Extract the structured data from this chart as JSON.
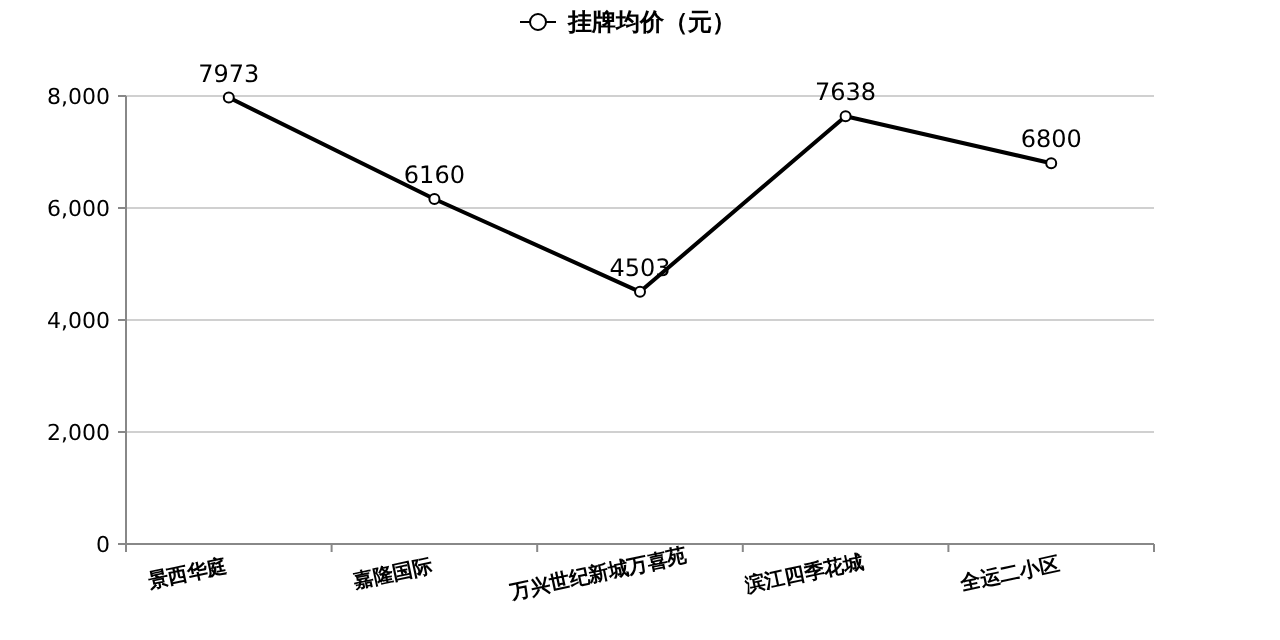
{
  "chart_data": {
    "type": "line",
    "categories": [
      "景西华庭",
      "嘉隆国际",
      "万兴世纪新城万喜苑",
      "滨江四季花城",
      "全运二小区"
    ],
    "series": [
      {
        "name": "挂牌均价（元）",
        "color": "#000000",
        "values": [
          7973,
          6160,
          4503,
          7638,
          6800
        ]
      }
    ],
    "ylim": [
      0,
      8000
    ],
    "yticks": [
      {
        "value": 0,
        "label": "0"
      },
      {
        "value": 2000,
        "label": "2,000"
      },
      {
        "value": 4000,
        "label": "4,000"
      },
      {
        "value": 6000,
        "label": "6,000"
      },
      {
        "value": 8000,
        "label": "8,000"
      }
    ],
    "grid": "y",
    "legend": "top",
    "marker": "circle",
    "line_style": "solid",
    "data_labels": true
  }
}
